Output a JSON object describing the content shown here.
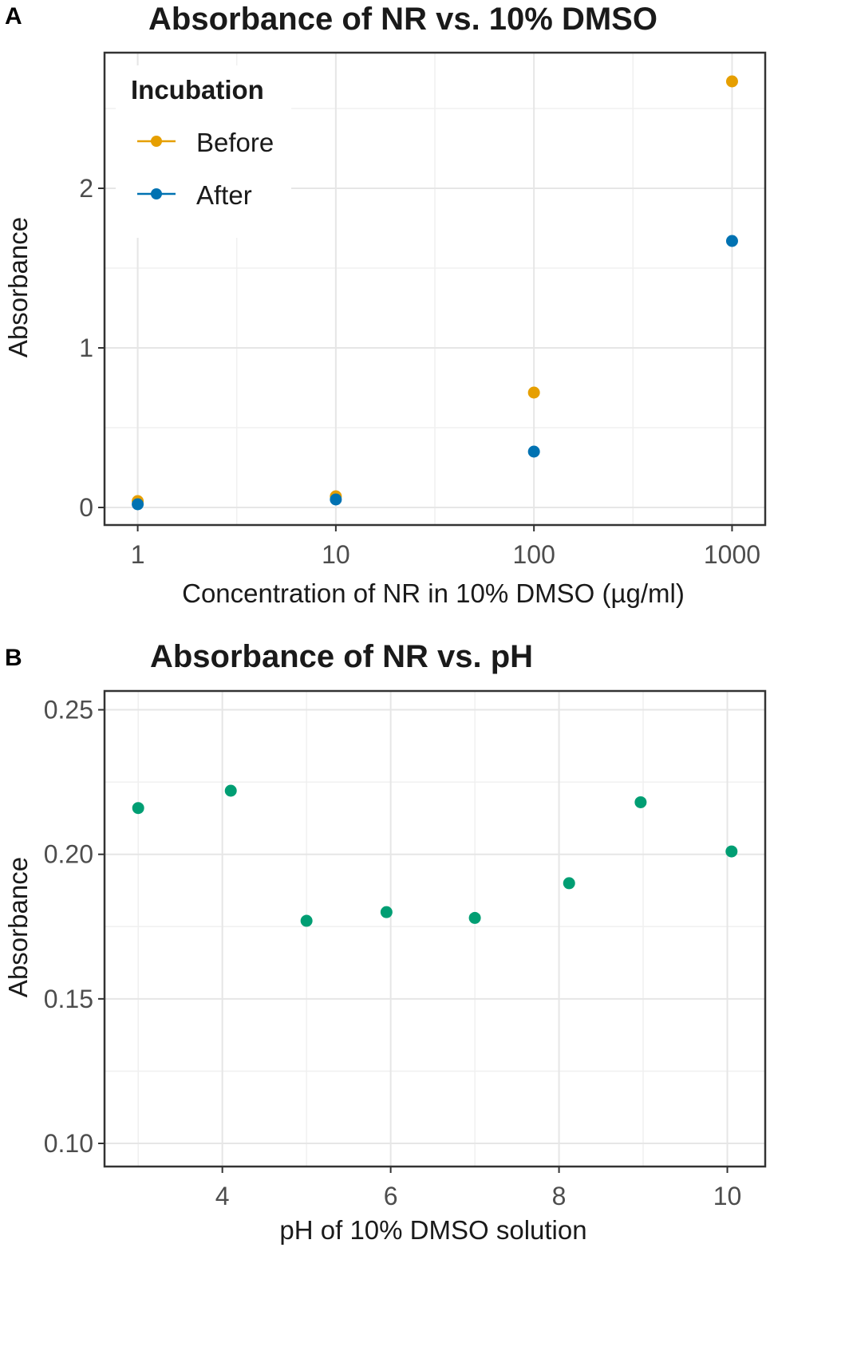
{
  "chart_data": [
    {
      "panel_label": "A",
      "type": "scatter",
      "title": "Absorbance of NR vs. 10% DMSO",
      "xlabel": "Concentration of NR in 10% DMSO (µg/ml)",
      "ylabel": "Absorbance",
      "x_scale": "log10",
      "x_ticks": [
        1,
        10,
        100,
        1000
      ],
      "x_tick_labels": [
        "1",
        "10",
        "100",
        "1000"
      ],
      "xlim": [
        0.68,
        1470
      ],
      "y_ticks": [
        0,
        1,
        2
      ],
      "y_tick_labels": [
        "0",
        "1",
        "2"
      ],
      "ylim": [
        -0.11,
        2.85
      ],
      "grid": true,
      "legend": {
        "title": "Incubation",
        "position": "top-left"
      },
      "series": [
        {
          "name": "Before",
          "color": "#E69F00",
          "x": [
            1,
            10,
            100,
            1000
          ],
          "y": [
            0.04,
            0.07,
            0.72,
            2.67
          ]
        },
        {
          "name": "After",
          "color": "#0072B2",
          "x": [
            1,
            10,
            100,
            1000
          ],
          "y": [
            0.02,
            0.05,
            0.35,
            1.67
          ]
        }
      ]
    },
    {
      "panel_label": "B",
      "type": "scatter",
      "title": "Absorbance of NR vs. pH",
      "xlabel": "pH of 10% DMSO solution",
      "ylabel": "Absorbance",
      "x_ticks": [
        4,
        6,
        8,
        10
      ],
      "x_tick_labels": [
        "4",
        "6",
        "8",
        "10"
      ],
      "xlim": [
        2.6,
        10.45
      ],
      "y_ticks": [
        0.1,
        0.15,
        0.2,
        0.25
      ],
      "y_tick_labels": [
        "0.10",
        "0.15",
        "0.20",
        "0.25"
      ],
      "ylim": [
        0.092,
        0.2565
      ],
      "grid": true,
      "series": [
        {
          "name": "Absorbance",
          "color": "#009E73",
          "x": [
            3.0,
            4.1,
            5.0,
            5.95,
            7.0,
            8.12,
            8.97,
            10.05
          ],
          "y": [
            0.216,
            0.222,
            0.177,
            0.18,
            0.178,
            0.19,
            0.218,
            0.201
          ]
        }
      ]
    }
  ]
}
